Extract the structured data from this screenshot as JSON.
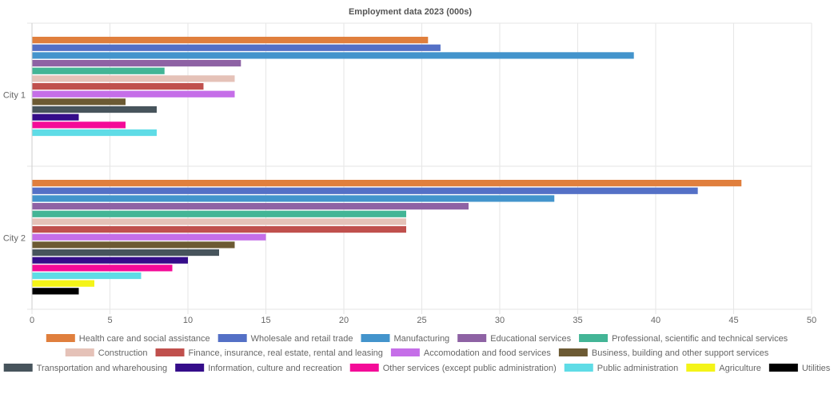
{
  "chart_data": {
    "type": "bar",
    "orientation": "horizontal",
    "title": "Employment data 2023 (000s)",
    "categories": [
      "City 1",
      "City 2"
    ],
    "xlim": [
      0,
      50
    ],
    "xticks": [
      "0",
      "5",
      "10",
      "15",
      "20",
      "25",
      "30",
      "35",
      "40",
      "45",
      "50"
    ],
    "legend_position": "bottom",
    "grid": true,
    "series": [
      {
        "name": "Health care and social assistance",
        "color": "#e07f3d",
        "values": [
          25.4,
          45.5
        ]
      },
      {
        "name": "Wholesale and retail trade",
        "color": "#5470c6",
        "values": [
          26.2,
          42.7
        ]
      },
      {
        "name": "Manufacturing",
        "color": "#4394cc",
        "values": [
          38.6,
          33.5
        ]
      },
      {
        "name": "Educational services",
        "color": "#8e62a4",
        "values": [
          13.4,
          28.0
        ]
      },
      {
        "name": "Professional, scientific and technical services",
        "color": "#43b596",
        "values": [
          8.5,
          24.0
        ]
      },
      {
        "name": "Construction",
        "color": "#e5c2b8",
        "values": [
          13.0,
          24.0
        ]
      },
      {
        "name": "Finance, insurance, real estate, rental and leasing",
        "color": "#c0504d",
        "values": [
          11.0,
          24.0
        ]
      },
      {
        "name": "Accomodation and food services",
        "color": "#c56ee8",
        "values": [
          13.0,
          15.0
        ]
      },
      {
        "name": "Business, building and other support services",
        "color": "#6c5a33",
        "values": [
          6.0,
          13.0
        ]
      },
      {
        "name": "Transportation and wharehousing",
        "color": "#47545c",
        "values": [
          8.0,
          12.0
        ]
      },
      {
        "name": "Information, culture and recreation",
        "color": "#350d8a",
        "values": [
          3.0,
          10.0
        ]
      },
      {
        "name": "Other services (except public administration)",
        "color": "#f40b98",
        "values": [
          6.0,
          9.0
        ]
      },
      {
        "name": "Public administration",
        "color": "#5fdce6",
        "values": [
          8.0,
          7.0
        ]
      },
      {
        "name": "Agriculture",
        "color": "#f4f418",
        "values": [
          null,
          4.0
        ]
      },
      {
        "name": "Utilities",
        "color": "#000000",
        "values": [
          null,
          3.0
        ]
      }
    ]
  }
}
